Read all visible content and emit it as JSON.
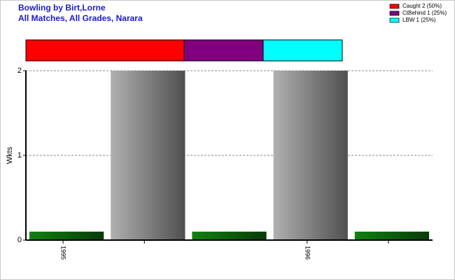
{
  "chart_data": [
    {
      "type": "bar",
      "title": "Bowling by Birt,Lorne",
      "subtitle": "All Matches, All Grades, Narara",
      "y_label": "Wkts",
      "categories": [
        "1995",
        null,
        null,
        "1996",
        null
      ],
      "values": [
        0.1,
        2,
        0.1,
        2,
        0.1
      ],
      "colors": [
        "#118011",
        "#b0b0b0",
        "#118011",
        "#b0b0b0",
        "#118011"
      ],
      "ylim": [
        0,
        2
      ],
      "yticks": [
        0,
        1,
        2
      ],
      "grid": true
    },
    {
      "type": "proportion",
      "series": [
        {
          "name": "Caught 2 (50%)",
          "color": "#ff0000",
          "values": [
            50
          ]
        },
        {
          "name": "CtBehind 1 (25%)",
          "color": "#800080",
          "values": [
            25
          ]
        },
        {
          "name": "LBW 1 (25%)",
          "color": "#00ffff",
          "values": [
            25
          ]
        }
      ]
    }
  ]
}
